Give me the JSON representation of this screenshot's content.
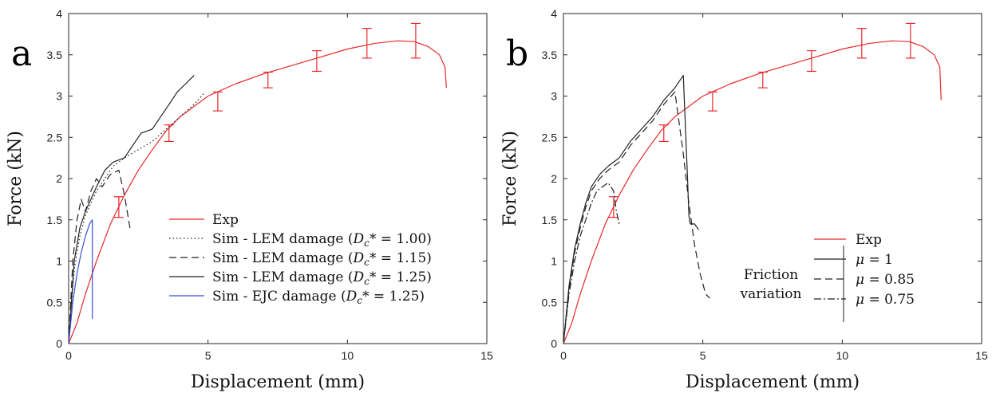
{
  "chart_data": [
    {
      "type": "line",
      "panel_label": "a",
      "xlabel": "Displacement (mm)",
      "ylabel": "Force (kN)",
      "xlim": [
        0,
        15
      ],
      "ylim": [
        0,
        4
      ],
      "xticks": [
        "0",
        "5",
        "10",
        "15"
      ],
      "yticks": [
        "0",
        "0.5",
        "1",
        "1.5",
        "2",
        "2.5",
        "3",
        "3.5",
        "4"
      ],
      "legend_position": "bottom-right",
      "series": [
        {
          "name": "Exp",
          "color": "#e8282b",
          "dash": "solid",
          "x": [
            0,
            0.3,
            0.6,
            1.0,
            1.5,
            2.0,
            2.5,
            3.0,
            3.5,
            4.0,
            5.0,
            6.0,
            7.0,
            8.0,
            9.0,
            10.0,
            11.0,
            11.8,
            12.4,
            12.9,
            13.3,
            13.5,
            13.55
          ],
          "y": [
            0,
            0.25,
            0.6,
            1.0,
            1.45,
            1.8,
            2.1,
            2.35,
            2.58,
            2.75,
            3.0,
            3.15,
            3.27,
            3.37,
            3.47,
            3.57,
            3.64,
            3.67,
            3.66,
            3.6,
            3.5,
            3.35,
            3.1
          ],
          "error_bars": [
            {
              "x": 1.8,
              "y": 1.65,
              "lo": 1.53,
              "hi": 1.78
            },
            {
              "x": 3.6,
              "y": 2.55,
              "lo": 2.45,
              "hi": 2.65
            },
            {
              "x": 5.35,
              "y": 2.93,
              "lo": 2.82,
              "hi": 3.05
            },
            {
              "x": 7.15,
              "y": 3.19,
              "lo": 3.1,
              "hi": 3.29
            },
            {
              "x": 8.9,
              "y": 3.42,
              "lo": 3.3,
              "hi": 3.55
            },
            {
              "x": 10.7,
              "y": 3.64,
              "lo": 3.46,
              "hi": 3.82
            },
            {
              "x": 12.45,
              "y": 3.67,
              "lo": 3.46,
              "hi": 3.88
            }
          ]
        },
        {
          "name": "Sim - LEM damage (Dc* = 1.00)",
          "label_main": "Sim - LEM damage (",
          "label_var": "D",
          "label_sub": "c",
          "label_rest": "* = 1.00)",
          "color": "#222222",
          "dash": "dotted",
          "x": [
            0,
            0.2,
            0.4,
            0.6,
            0.8,
            1.0,
            1.3,
            1.6,
            2.0,
            2.5,
            3.0,
            3.5,
            4.0,
            4.5,
            4.9
          ],
          "y": [
            0,
            0.9,
            1.3,
            1.55,
            1.7,
            1.85,
            2.0,
            2.15,
            2.25,
            2.35,
            2.45,
            2.6,
            2.75,
            2.9,
            3.05
          ]
        },
        {
          "name": "Sim - LEM damage (Dc* = 1.15)",
          "label_main": "Sim - LEM damage (",
          "label_var": "D",
          "label_sub": "c",
          "label_rest": "* = 1.15)",
          "color": "#222222",
          "dash": "dashed",
          "x": [
            0,
            0.15,
            0.3,
            0.45,
            0.6,
            0.8,
            1.0,
            1.2,
            1.5,
            1.8,
            2.0,
            2.1,
            2.2
          ],
          "y": [
            0,
            1.0,
            1.5,
            1.75,
            1.6,
            1.85,
            2.0,
            1.9,
            2.05,
            2.1,
            1.8,
            1.6,
            1.4
          ]
        },
        {
          "name": "Sim - LEM damage (Dc* = 1.25)",
          "label_main": "Sim - LEM damage (",
          "label_var": "D",
          "label_sub": "c",
          "label_rest": "* = 1.25)",
          "color": "#222222",
          "dash": "solid",
          "x": [
            0,
            0.2,
            0.4,
            0.6,
            0.8,
            1.0,
            1.3,
            1.6,
            2.0,
            2.3,
            2.6,
            3.0,
            3.3,
            3.6,
            3.9,
            4.2,
            4.5
          ],
          "y": [
            0,
            1.0,
            1.4,
            1.6,
            1.75,
            1.9,
            2.1,
            2.2,
            2.25,
            2.4,
            2.55,
            2.6,
            2.75,
            2.9,
            3.05,
            3.15,
            3.25
          ]
        },
        {
          "name": "Sim - EJC damage (Dc* = 1.25)",
          "label_main": "Sim - EJC damage (",
          "label_var": "D",
          "label_sub": "c",
          "label_rest": "* = 1.25)",
          "color": "#3b4fd6",
          "dash": "solid",
          "x": [
            0,
            0.15,
            0.3,
            0.45,
            0.6,
            0.75,
            0.85,
            0.85
          ],
          "y": [
            0,
            0.5,
            0.85,
            1.1,
            1.3,
            1.45,
            1.5,
            0.3
          ]
        }
      ]
    },
    {
      "type": "line",
      "panel_label": "b",
      "xlabel": "Displacement (mm)",
      "ylabel": "Force (kN)",
      "xlim": [
        0,
        15
      ],
      "ylim": [
        0,
        4
      ],
      "xticks": [
        "0",
        "5",
        "10",
        "15"
      ],
      "yticks": [
        "0",
        "0.5",
        "1",
        "1.5",
        "2",
        "2.5",
        "3",
        "3.5",
        "4"
      ],
      "legend_position": "bottom-right",
      "legend_group_label": [
        "Friction",
        "variation"
      ],
      "series": [
        {
          "name": "Exp",
          "color": "#e8282b",
          "dash": "solid",
          "x": [
            0,
            0.3,
            0.6,
            1.0,
            1.5,
            2.0,
            2.5,
            3.0,
            3.5,
            4.0,
            5.0,
            6.0,
            7.0,
            8.0,
            9.0,
            10.0,
            11.0,
            11.8,
            12.4,
            12.9,
            13.3,
            13.5,
            13.55
          ],
          "y": [
            0,
            0.25,
            0.6,
            1.0,
            1.45,
            1.8,
            2.1,
            2.35,
            2.58,
            2.75,
            3.0,
            3.15,
            3.27,
            3.37,
            3.47,
            3.57,
            3.64,
            3.67,
            3.66,
            3.6,
            3.5,
            3.35,
            2.95
          ],
          "error_bars": [
            {
              "x": 1.8,
              "y": 1.65,
              "lo": 1.53,
              "hi": 1.78
            },
            {
              "x": 3.6,
              "y": 2.55,
              "lo": 2.45,
              "hi": 2.65
            },
            {
              "x": 5.35,
              "y": 2.93,
              "lo": 2.82,
              "hi": 3.05
            },
            {
              "x": 7.15,
              "y": 3.19,
              "lo": 3.1,
              "hi": 3.29
            },
            {
              "x": 8.9,
              "y": 3.42,
              "lo": 3.3,
              "hi": 3.55
            },
            {
              "x": 10.7,
              "y": 3.64,
              "lo": 3.46,
              "hi": 3.82
            },
            {
              "x": 12.45,
              "y": 3.67,
              "lo": 3.46,
              "hi": 3.88
            }
          ]
        },
        {
          "name": "μ = 1",
          "label_var": "μ",
          "label_rest": " = 1",
          "color": "#222222",
          "dash": "solid",
          "x": [
            0,
            0.2,
            0.4,
            0.6,
            0.8,
            1.0,
            1.3,
            1.6,
            2.0,
            2.4,
            2.8,
            3.2,
            3.6,
            4.0,
            4.3,
            4.45,
            4.5,
            4.55,
            4.7,
            4.85
          ],
          "y": [
            0,
            0.7,
            1.15,
            1.45,
            1.7,
            1.9,
            2.05,
            2.15,
            2.25,
            2.45,
            2.6,
            2.75,
            2.95,
            3.1,
            3.25,
            2.0,
            1.55,
            1.45,
            1.45,
            1.38
          ]
        },
        {
          "name": "μ = 0.85",
          "label_var": "μ",
          "label_rest": " = 0.85",
          "color": "#222222",
          "dash": "dashed",
          "x": [
            0,
            0.2,
            0.4,
            0.6,
            0.8,
            1.0,
            1.3,
            1.6,
            2.0,
            2.4,
            2.8,
            3.2,
            3.6,
            4.0,
            4.1,
            4.3,
            4.5,
            4.7,
            4.9,
            5.1,
            5.25
          ],
          "y": [
            0,
            0.65,
            1.1,
            1.4,
            1.65,
            1.85,
            2.0,
            2.1,
            2.2,
            2.4,
            2.55,
            2.7,
            2.9,
            3.05,
            2.8,
            2.3,
            1.7,
            1.2,
            0.85,
            0.6,
            0.55
          ]
        },
        {
          "name": "μ = 0.75",
          "label_var": "μ",
          "label_rest": " = 0.75",
          "color": "#222222",
          "dash": "dashdot",
          "x": [
            0,
            0.2,
            0.4,
            0.6,
            0.8,
            1.0,
            1.2,
            1.4,
            1.6,
            1.8,
            1.9,
            2.0
          ],
          "y": [
            0,
            0.6,
            1.0,
            1.3,
            1.5,
            1.7,
            1.85,
            1.9,
            1.95,
            1.85,
            1.6,
            1.45
          ]
        }
      ]
    }
  ]
}
